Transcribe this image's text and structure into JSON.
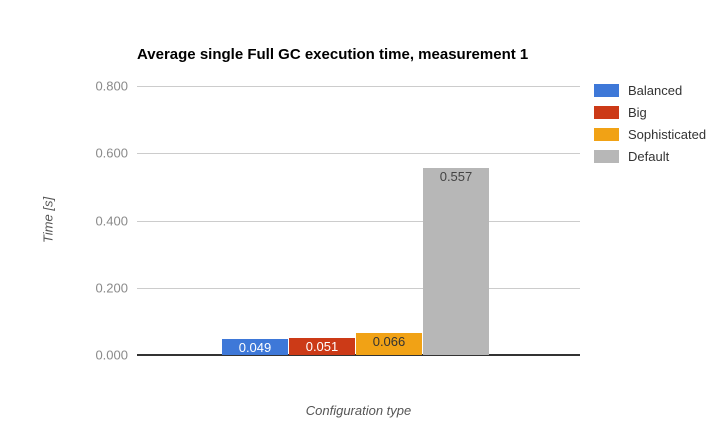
{
  "chart_data": {
    "type": "bar",
    "title": "Average single Full GC execution time, measurement 1",
    "xlabel": "Configuration type",
    "ylabel": "Time [s]",
    "ylim": [
      0,
      0.8
    ],
    "yticks": [
      "0.000",
      "0.200",
      "0.400",
      "0.600",
      "0.800"
    ],
    "grid": true,
    "legend_position": "right",
    "background_color": "#FFFFFF",
    "series": [
      {
        "name": "Balanced",
        "value": 0.049,
        "label": "0.049",
        "color": "#3E78D8",
        "label_color": "#FFFFFF"
      },
      {
        "name": "Big",
        "value": 0.051,
        "label": "0.051",
        "color": "#CC3A17",
        "label_color": "#FFFFFF"
      },
      {
        "name": "Sophisticated",
        "value": 0.066,
        "label": "0.066",
        "color": "#F1A215",
        "label_color": "#333333"
      },
      {
        "name": "Default",
        "value": 0.557,
        "label": "0.557",
        "color": "#B7B7B7",
        "label_color": "#444444"
      }
    ]
  }
}
